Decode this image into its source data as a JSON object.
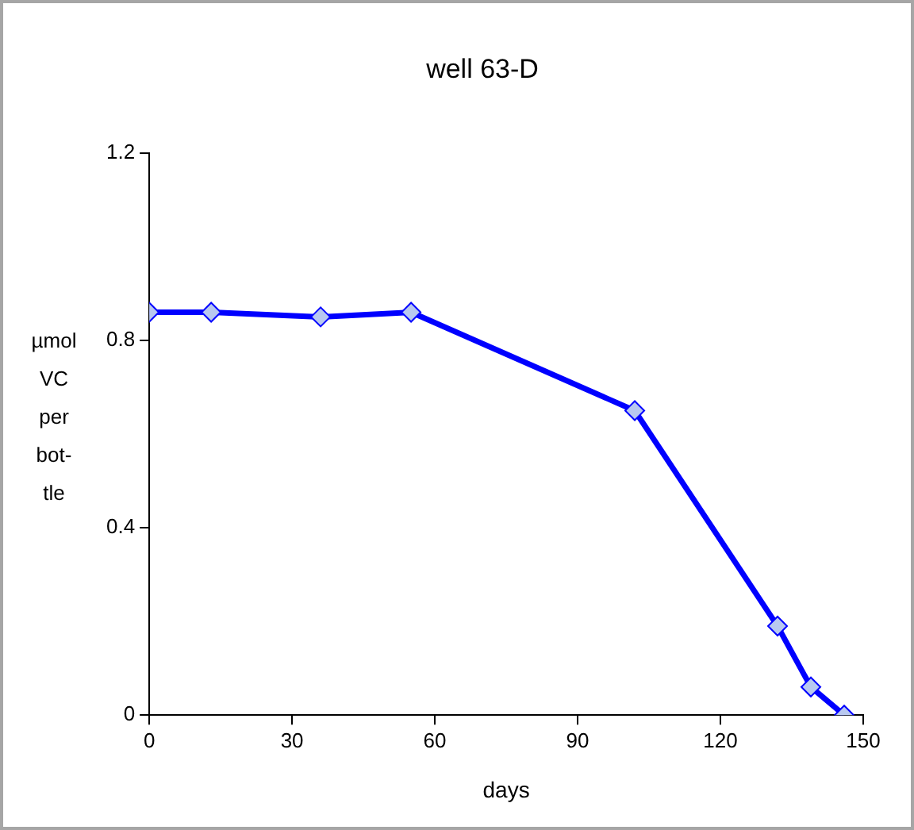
{
  "chart_data": {
    "type": "line",
    "title": "well 63-D",
    "xlabel": "days",
    "ylabel": "µmol VC per bot-tle",
    "x": [
      0,
      13,
      36,
      55,
      102,
      132,
      139,
      146
    ],
    "series": [
      {
        "color": "#0000ff",
        "values": [
          0.86,
          0.86,
          0.85,
          0.86,
          0.65,
          0.19,
          0.06,
          0
        ]
      }
    ],
    "xlim": [
      0,
      150
    ],
    "xticks": [
      0,
      30,
      60,
      90,
      120,
      150
    ],
    "ylim": [
      0,
      1.2
    ],
    "yticks": [
      0,
      0.4,
      0.8,
      1.2
    ],
    "grid": false,
    "legend": false,
    "marker": "diamond",
    "line_style": "solid"
  }
}
